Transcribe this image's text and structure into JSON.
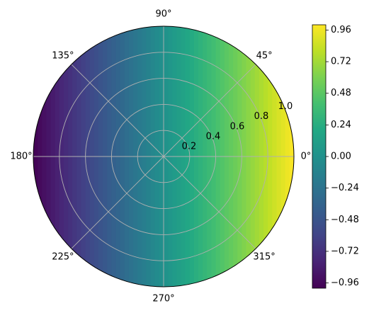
{
  "chart_data": {
    "type": "heatmap",
    "projection": "polar",
    "field": "cos(theta) * r",
    "theta_tick_labels": [
      "0°",
      "45°",
      "90°",
      "135°",
      "180°",
      "225°",
      "270°",
      "315°"
    ],
    "theta_ticks_deg": [
      0,
      45,
      90,
      135,
      180,
      225,
      270,
      315
    ],
    "r_tick_labels": [
      "0.2",
      "0.4",
      "0.6",
      "0.8",
      "1.0"
    ],
    "r_ticks": [
      0.2,
      0.4,
      0.6,
      0.8,
      1.0
    ],
    "rlim": [
      0,
      1.0
    ],
    "grid": true,
    "colormap": "viridis",
    "colorbar": {
      "range": [
        -1.0,
        1.0
      ],
      "tick_labels": [
        "0.96",
        "0.72",
        "0.48",
        "0.24",
        "0.00",
        "−0.24",
        "−0.48",
        "−0.72",
        "−0.96"
      ],
      "ticks": [
        0.96,
        0.72,
        0.48,
        0.24,
        0.0,
        -0.24,
        -0.48,
        -0.72,
        -0.96
      ]
    }
  }
}
